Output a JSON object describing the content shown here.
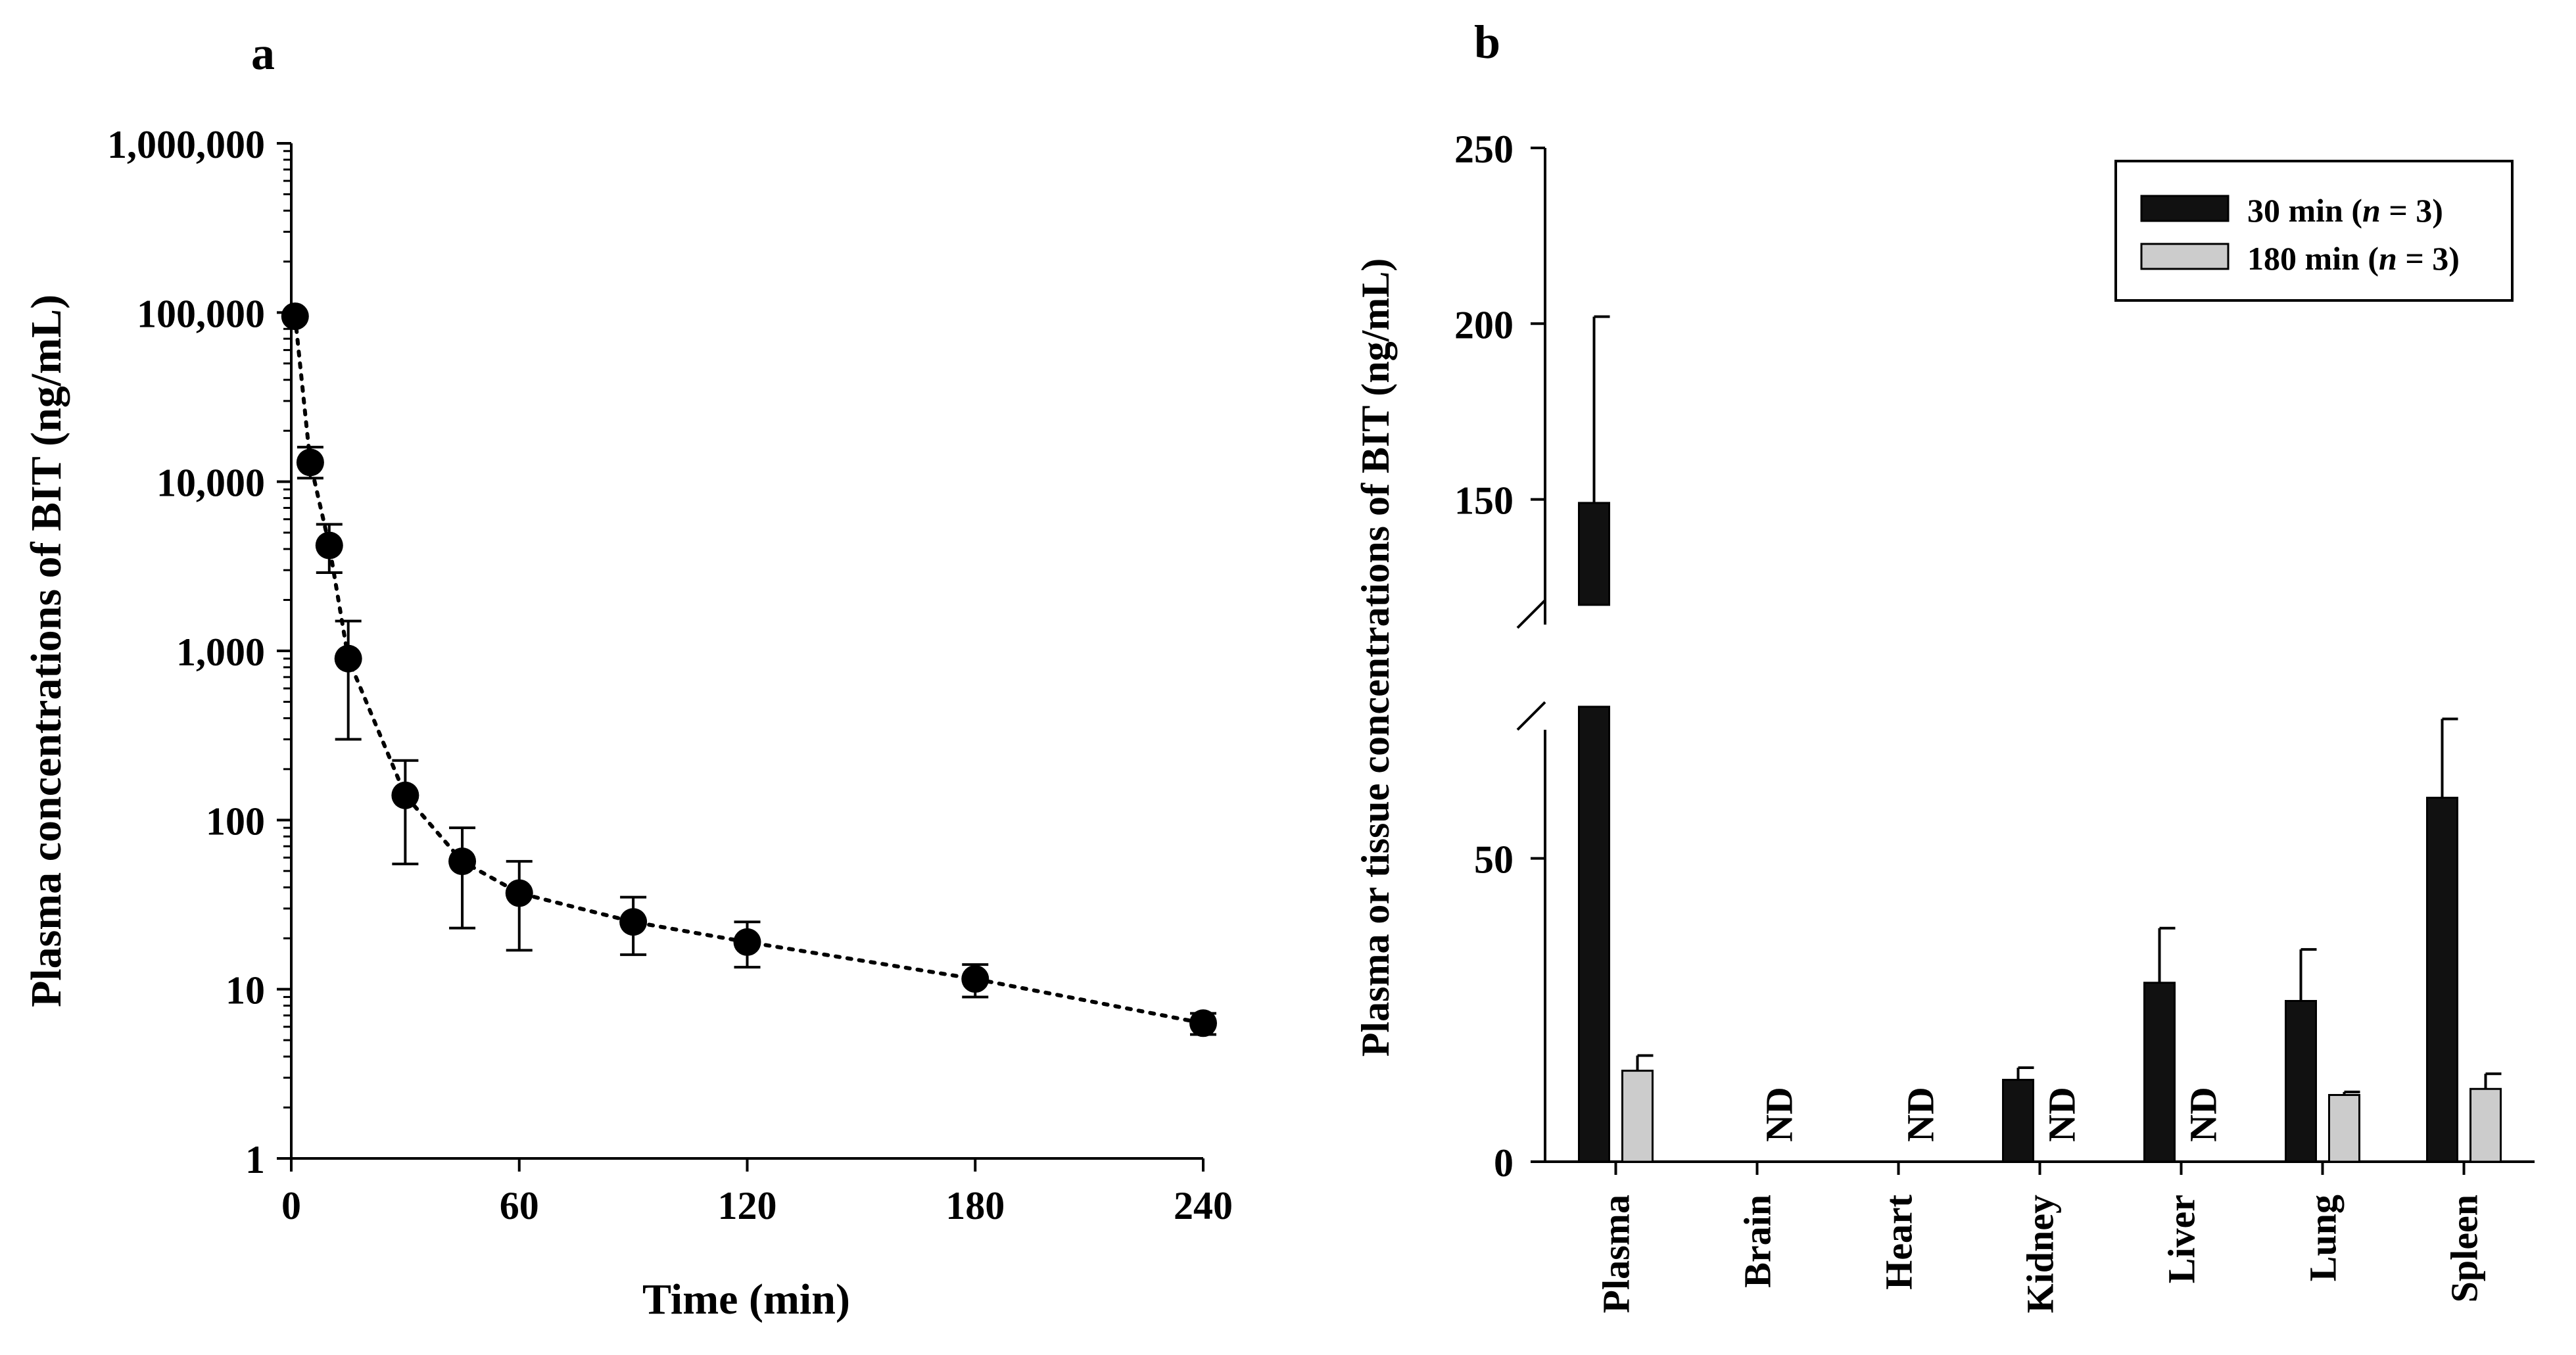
{
  "colors": {
    "ink": "#000000",
    "bar_30": "#111111",
    "bar_180": "#cccccc",
    "background": "#ffffff"
  },
  "chart_data": [
    {
      "panel_label": "a",
      "type": "scatter",
      "scale_y": "log",
      "title": "",
      "xlabel": "Time (min)",
      "ylabel": "Plasma concentrations of BIT (ng/mL)",
      "xlim": [
        0,
        240
      ],
      "ylim": [
        1,
        1000000
      ],
      "x_ticks": [
        0,
        60,
        120,
        180,
        240
      ],
      "x_tick_labels": [
        "0",
        "60",
        "120",
        "180",
        "240"
      ],
      "y_ticks": [
        1,
        10,
        100,
        1000,
        10000,
        100000,
        1000000
      ],
      "y_tick_labels": [
        "1",
        "10",
        "100",
        "1,000",
        "10,000",
        "100,000",
        "1,000,000"
      ],
      "line_style": "dotted",
      "points": [
        {
          "x": 1,
          "y": 95000,
          "err_low": 95000,
          "err_high": 95000
        },
        {
          "x": 5,
          "y": 13000,
          "err_low": 10500,
          "err_high": 16000
        },
        {
          "x": 10,
          "y": 4200,
          "err_low": 2900,
          "err_high": 5600
        },
        {
          "x": 15,
          "y": 900,
          "err_low": 300,
          "err_high": 1500
        },
        {
          "x": 30,
          "y": 140,
          "err_low": 55,
          "err_high": 225
        },
        {
          "x": 45,
          "y": 57,
          "err_low": 23,
          "err_high": 90
        },
        {
          "x": 60,
          "y": 37,
          "err_low": 17,
          "err_high": 57
        },
        {
          "x": 90,
          "y": 25,
          "err_low": 16,
          "err_high": 35
        },
        {
          "x": 120,
          "y": 19,
          "err_low": 13.5,
          "err_high": 25
        },
        {
          "x": 180,
          "y": 11.5,
          "err_low": 9,
          "err_high": 14
        },
        {
          "x": 240,
          "y": 6.3,
          "err_low": 5.4,
          "err_high": 7.2
        }
      ]
    },
    {
      "panel_label": "b",
      "type": "bar",
      "title": "",
      "xlabel": "",
      "ylabel": "Plasma or tissue concentrations of BIT (ng/mL)",
      "axis_break": true,
      "lower_ylim": [
        0,
        75
      ],
      "upper_ylim": [
        120,
        250
      ],
      "y_ticks_lower": [
        0,
        50
      ],
      "y_tick_labels_lower": [
        "0",
        "50"
      ],
      "y_ticks_upper": [
        150,
        200,
        250
      ],
      "y_tick_labels_upper": [
        "150",
        "200",
        "250"
      ],
      "categories": [
        "Plasma",
        "Brain",
        "Heart",
        "Kidney",
        "Liver",
        "Lung",
        "Spleen"
      ],
      "series": [
        {
          "name_main": "30 min (",
          "name_italic": "n",
          "name_tail": " = 3)",
          "color": "#111111",
          "values": [
            149,
            null,
            null,
            13.5,
            29.5,
            26.5,
            60
          ],
          "errors": [
            53,
            null,
            null,
            2,
            9,
            8.5,
            13
          ]
        },
        {
          "name_main": "180 min (",
          "name_italic": "n",
          "name_tail": " = 3)",
          "color": "#cccccc",
          "values": [
            15,
            null,
            null,
            null,
            null,
            11,
            12
          ],
          "errors": [
            2.5,
            null,
            null,
            null,
            null,
            0.5,
            2.5
          ]
        }
      ],
      "nd_label": "ND",
      "nd_marks": [
        {
          "category": "Brain",
          "series": 1
        },
        {
          "category": "Heart",
          "series": 1
        },
        {
          "category": "Kidney",
          "series": 1
        },
        {
          "category": "Liver",
          "series": 1
        }
      ],
      "legend_position": "top-right"
    }
  ]
}
